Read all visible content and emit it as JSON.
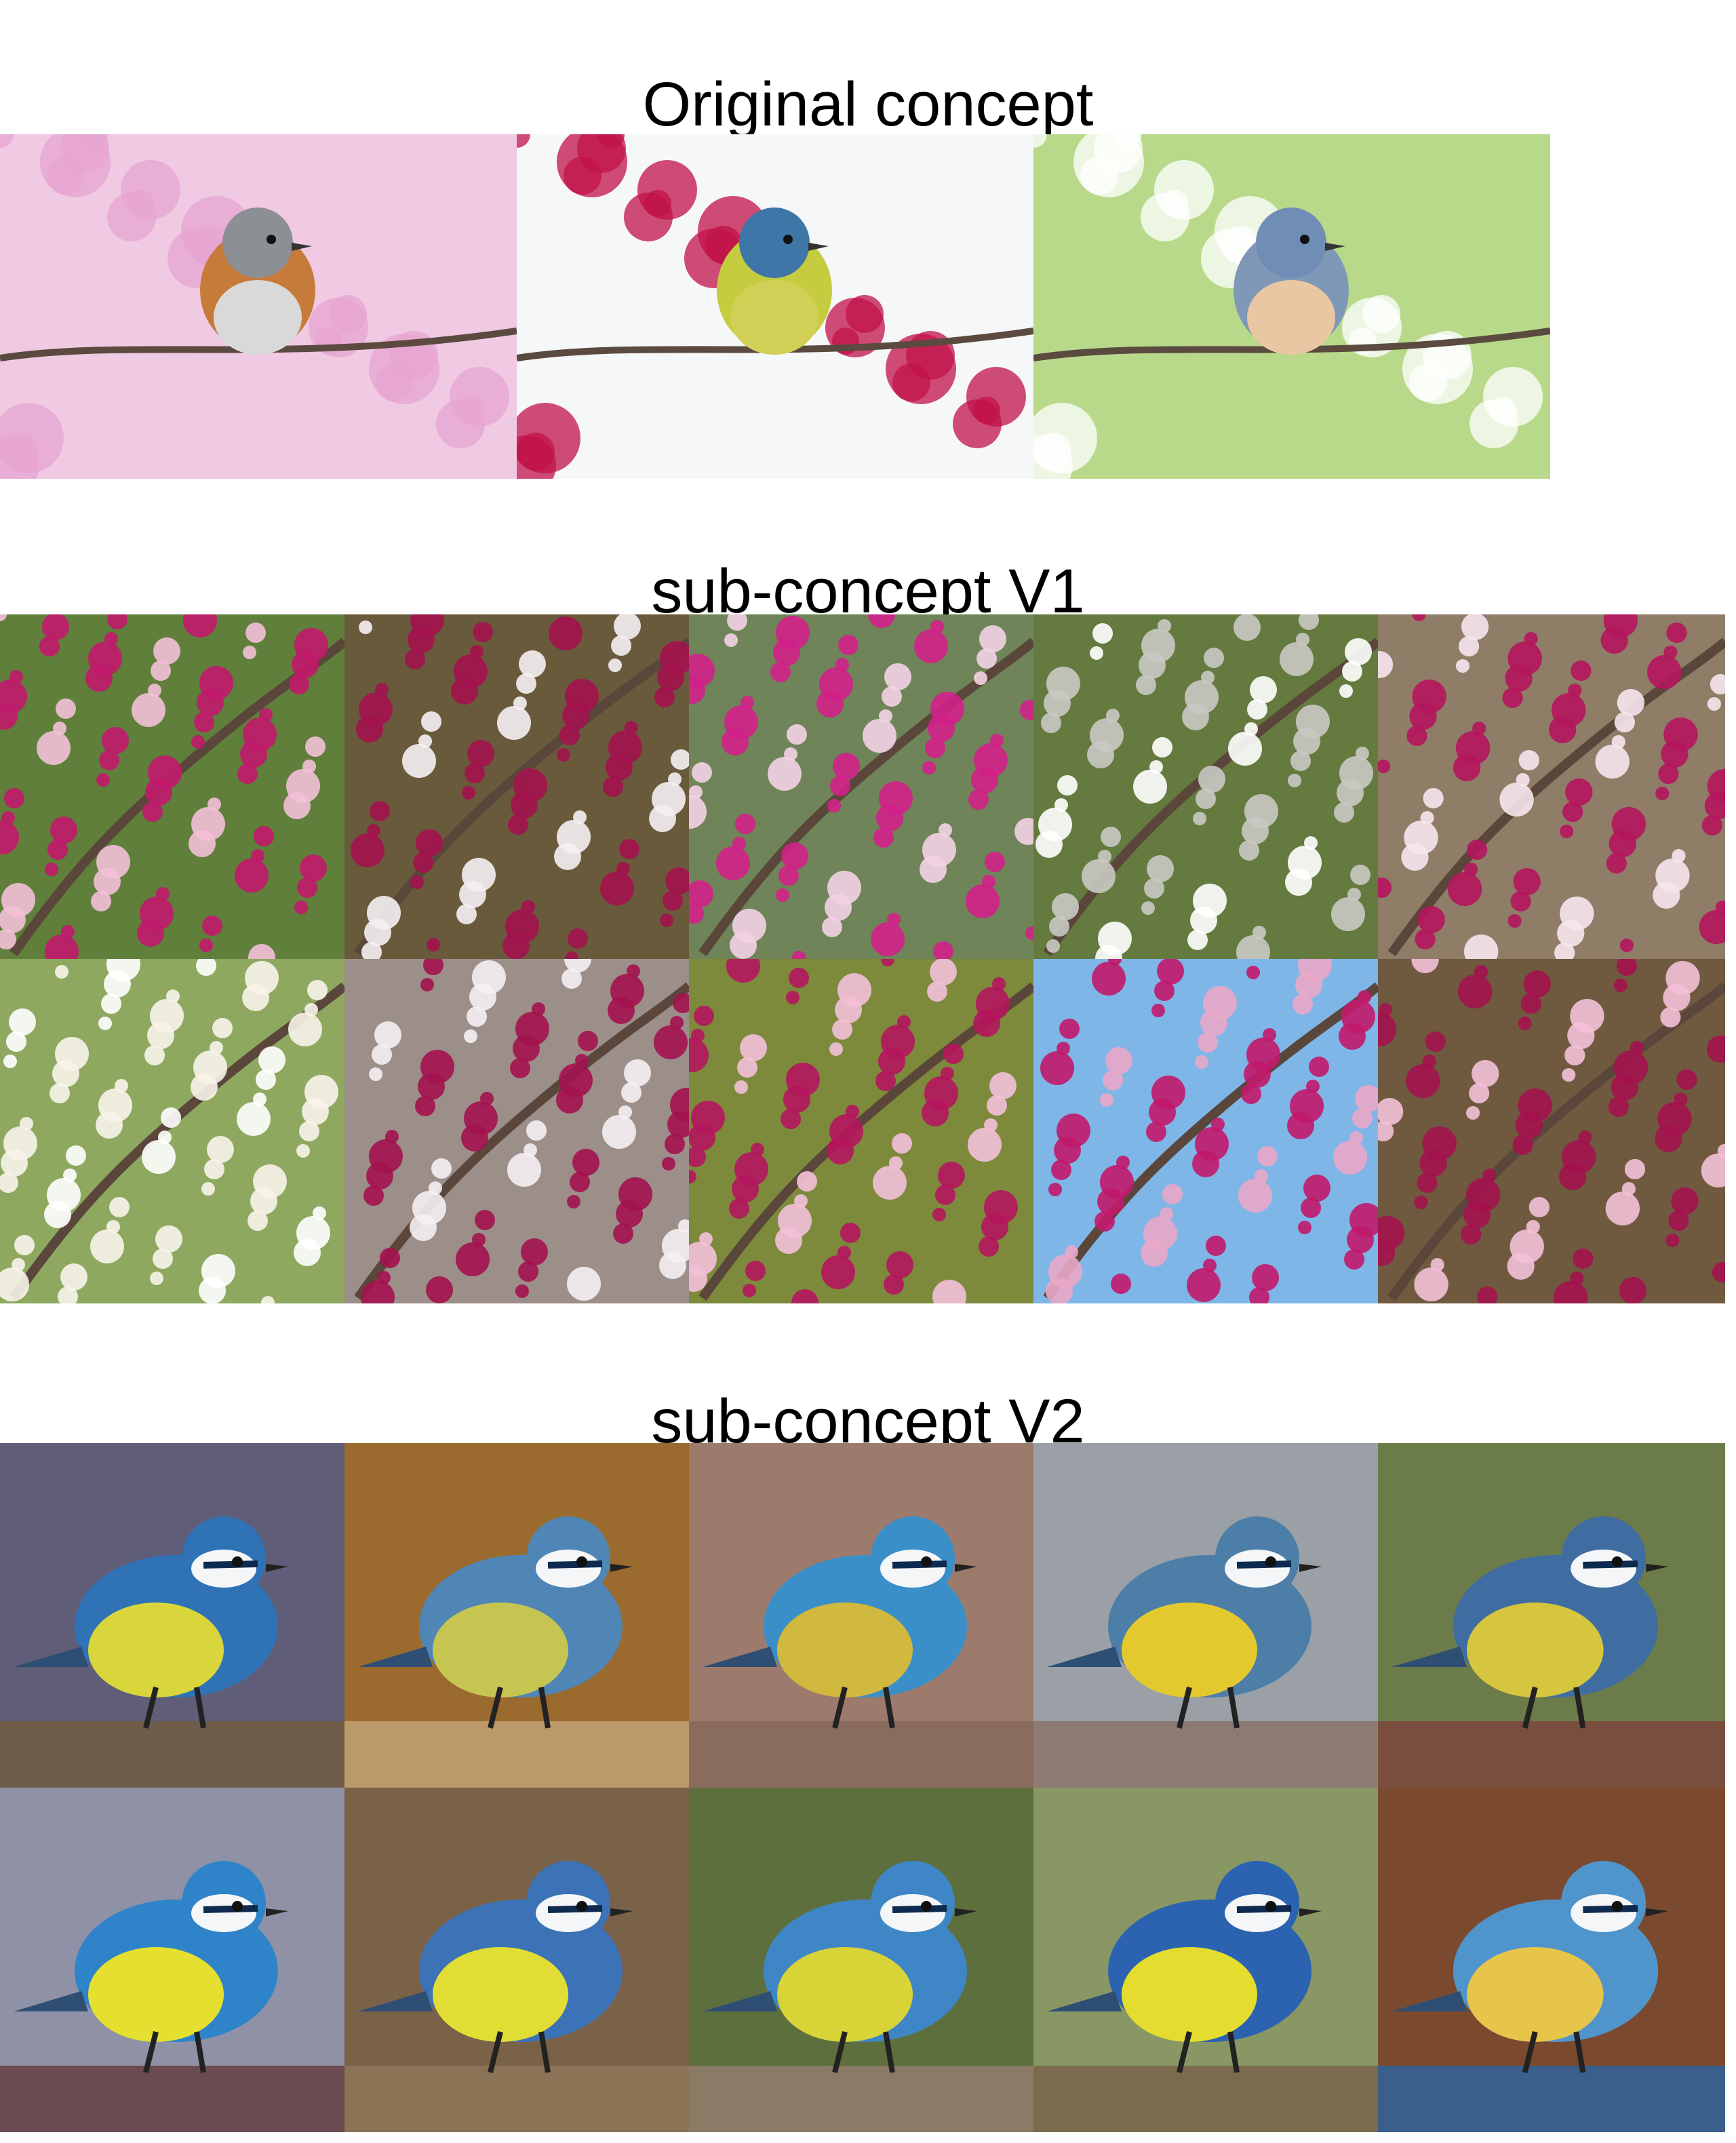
{
  "sections": {
    "original": {
      "title": "Original concept",
      "images": [
        {
          "subject": "robin on pink blossom branch",
          "bg": "#f0c9e2",
          "accent": "#e7a4d2",
          "bird": {
            "body": "#c77b3b",
            "belly": "#d9d9d9",
            "head": "#8c8f93"
          }
        },
        {
          "subject": "blue tit on crabapple blossom branch",
          "bg": "#f6f7f9",
          "accent": "#c0114a",
          "bird": {
            "body": "#c5cc3f",
            "belly": "#d1cf56",
            "head": "#3f76a8"
          }
        },
        {
          "subject": "nuthatch on apple blossom branch",
          "bg": "#b9d98a",
          "accent": "#ffffff",
          "bird": {
            "body": "#7f98b8",
            "belly": "#e9c7a3",
            "head": "#6f8db5"
          }
        }
      ]
    },
    "v1": {
      "title": "sub-concept V1",
      "images": [
        {
          "bg": "#5f7f3a",
          "blossom": "#c2186b",
          "light": "#f3c0d8"
        },
        {
          "bg": "#6a5a3c",
          "blossom": "#a3124e",
          "light": "#f5f0f3"
        },
        {
          "bg": "#6f8458",
          "blossom": "#d1208a",
          "light": "#f4d2e5"
        },
        {
          "bg": "#657a3e",
          "blossom": "#c9c9c4",
          "light": "#ffffff"
        },
        {
          "bg": "#8f7d67",
          "blossom": "#b5155d",
          "light": "#f6e7ee"
        },
        {
          "bg": "#8ea860",
          "blossom": "#f8f3ea",
          "light": "#ffffff"
        },
        {
          "bg": "#9c8f8a",
          "blossom": "#a3124e",
          "light": "#f5f0f3"
        },
        {
          "bg": "#7d8a3c",
          "blossom": "#b5155d",
          "light": "#f3c0d8"
        },
        {
          "bg": "#7fb6e8",
          "blossom": "#c2186b",
          "light": "#e9a7c8"
        },
        {
          "bg": "#6f5a3f",
          "blossom": "#a3124e",
          "light": "#f3c0d8"
        }
      ]
    },
    "v2": {
      "title": "sub-concept V2",
      "images": [
        {
          "bg": "#5f5d78",
          "perch": "#6e5b48",
          "blue": "#2f73b6",
          "yellow": "#d8d63a"
        },
        {
          "bg": "#9b6a2f",
          "perch": "#b99a68",
          "blue": "#4f86b5",
          "yellow": "#c7c552"
        },
        {
          "bg": "#9c7b6d",
          "perch": "#8a6c5c",
          "blue": "#3b8fc8",
          "yellow": "#d1b83e"
        },
        {
          "bg": "#9aa0a5",
          "perch": "#8d7a73",
          "blue": "#4c7ea8",
          "yellow": "#e3c92e"
        },
        {
          "bg": "#6c7b4a",
          "perch": "#7a4e3e",
          "blue": "#3f6da1",
          "yellow": "#d6c53e"
        },
        {
          "bg": "#8f92a6",
          "perch": "#6b4a52",
          "blue": "#2f84c9",
          "yellow": "#e5e02f"
        },
        {
          "bg": "#7a6249",
          "perch": "#8b7356",
          "blue": "#3c72b6",
          "yellow": "#e2dd35"
        },
        {
          "bg": "#5d6f3d",
          "perch": "#8a7b66",
          "blue": "#3f86c6",
          "yellow": "#d8d336"
        },
        {
          "bg": "#889764",
          "perch": "#7b6a4d",
          "blue": "#2b63b1",
          "yellow": "#e4dd2f"
        },
        {
          "bg": "#7b4a2e",
          "perch": "#3a5f8a",
          "blue": "#4f95cc",
          "yellow": "#e7c44a"
        }
      ]
    }
  }
}
